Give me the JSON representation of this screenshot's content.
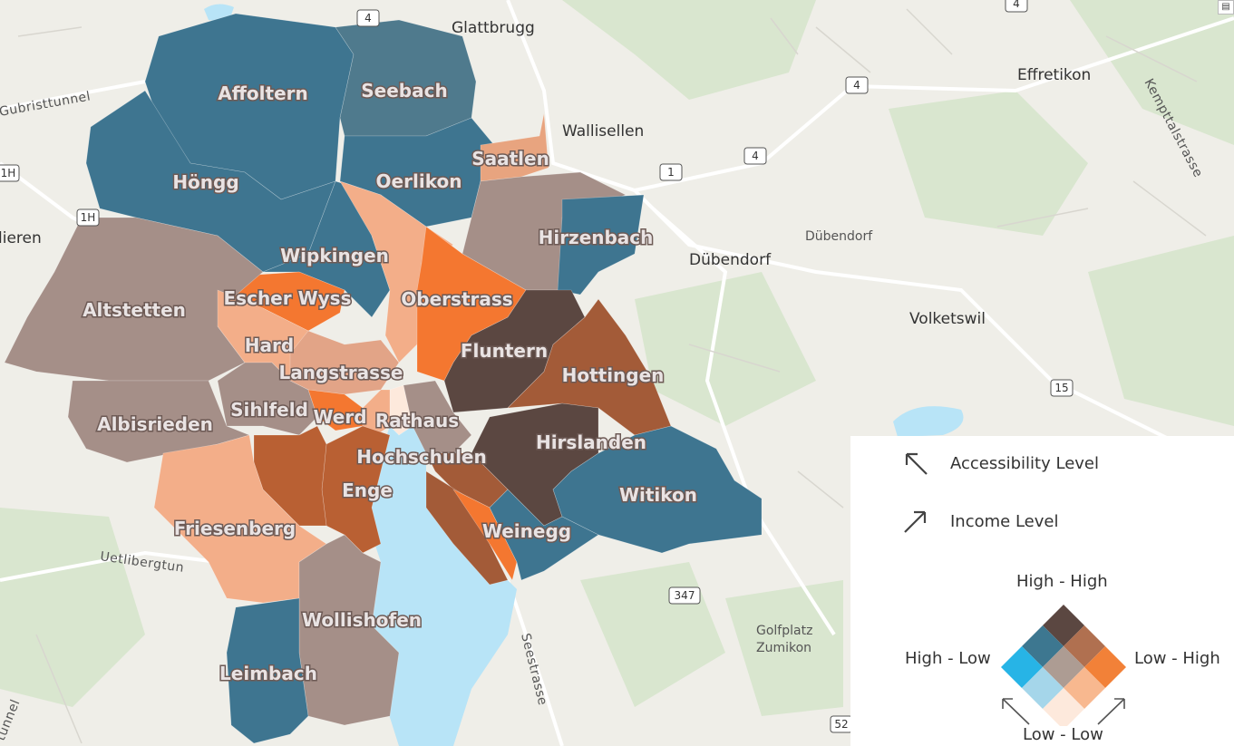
{
  "places": {
    "glattbrugg": "Glattbrugg",
    "wallisellen": "Wallisellen",
    "effretikon": "Effretikon",
    "dubendorf_area": "Dübendorf",
    "dubendorf": "Dübendorf",
    "volketswil": "Volketswil",
    "golfplatz1": "Golfplatz",
    "golfplatz2": "Zumikon",
    "dietikon_part": "lieren"
  },
  "roads": {
    "gubristtunnel": "Gubristtunnel",
    "uetlibergtunnel": "Uetlibergtun",
    "kempttalstrasse": "Kempttalstrasse",
    "seestrasse": "Seestrasse",
    "tunnel_left": "tunnel"
  },
  "shields": [
    "4",
    "4",
    "4",
    "4",
    "1",
    "1H",
    "1H",
    "15",
    "347",
    "52"
  ],
  "districts": {
    "affoltern": "Affoltern",
    "seebach": "Seebach",
    "hongg": "Höngg",
    "oerlikon": "Oerlikon",
    "saatlen": "Saatlen",
    "hirzenbach": "Hirzenbach",
    "wipkingen": "Wipkingen",
    "escher_wyss": "Escher Wyss",
    "oberstrass": "Oberstrass",
    "altstetten": "Altstetten",
    "hard": "Hard",
    "fluntern": "Fluntern",
    "langstrasse": "Langstrasse",
    "hottingen": "Hottingen",
    "sihlfeld": "Sihlfeld",
    "werd": "Werd",
    "rathaus": "Rathaus",
    "albisrieden": "Albisrieden",
    "hochschulen": "Hochschulen",
    "hirslanden": "Hirslanden",
    "enge": "Enge",
    "witikon": "Witikon",
    "friesenberg": "Friesenberg",
    "weinegg": "Weinegg",
    "wollishofen": "Wollishofen",
    "leimbach": "Leimbach"
  },
  "legend": {
    "accessibility_label": "Accessibility Level",
    "income_label": "Income Level",
    "top": "High - High",
    "left": "High - Low",
    "right": "Low - High",
    "bottom": "Low - Low",
    "matrix_colors": {
      "high_high": "#5b4741",
      "mid_row": "#b07050",
      "accent_orange": "#f28138",
      "light_orange": "#f8b88f",
      "low_low": "#fde9dc",
      "light_blue": "#a5d6ea",
      "accent_blue": "#27b4e6",
      "dark_blue": "#3d7790",
      "center": "#ad9c93"
    },
    "arrow_accessibility_icon": "arrow-up-left-icon",
    "arrow_income_icon": "arrow-up-right-icon"
  },
  "colors": {
    "water": "#b8e4f7",
    "dark_blue": "#3e7590",
    "taupe": "#a58f88",
    "light_orange": "#f3ae89",
    "orange": "#f47730",
    "brown": "#a35b38",
    "dark_brown": "#5b4741"
  },
  "corner_button_icon": "collapse-icon"
}
